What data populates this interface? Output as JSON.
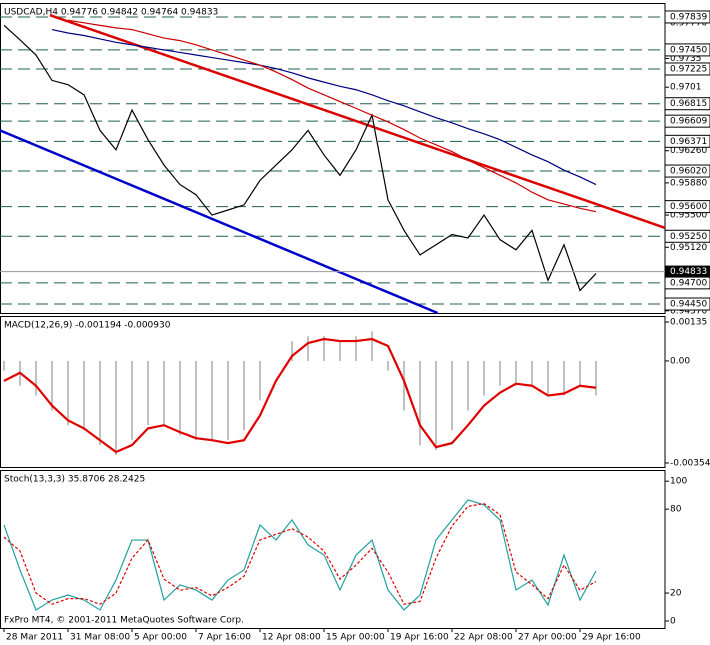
{
  "chart_data": [
    {
      "type": "line",
      "title": "USDCAD,H4  0.94776 0.94842 0.94764 0.94833",
      "series": [
        {
          "color": "#000000",
          "values": [
            0.9774,
            0.9757,
            0.9739,
            0.9709,
            0.9704,
            0.9692,
            0.965,
            0.9627,
            0.9674,
            0.9639,
            0.9609,
            0.9586,
            0.9574,
            0.955,
            0.9556,
            0.9562,
            0.9591,
            0.9609,
            0.9627,
            0.965,
            0.9621,
            0.9597,
            0.9627,
            0.9668,
            0.9568,
            0.9532,
            0.9503,
            0.9515,
            0.9527,
            0.9523,
            0.955,
            0.9521,
            0.9509,
            0.9532,
            0.9473,
            0.9515,
            0.9461,
            0.9481
          ]
        },
        {
          "color": "#000080",
          "values": [
            null,
            null,
            null,
            0.9769,
            0.9765,
            0.9762,
            0.9758,
            0.9754,
            0.9751,
            0.9748,
            0.9745,
            0.9742,
            0.9739,
            0.9736,
            0.9733,
            0.973,
            0.9727,
            0.9723,
            0.9718,
            0.9712,
            0.9707,
            0.9702,
            0.9698,
            0.9692,
            0.9685,
            0.9679,
            0.9672,
            0.9665,
            0.9659,
            0.9652,
            0.9646,
            0.9639,
            0.963,
            0.9621,
            0.9613,
            0.9603,
            0.9595,
            0.9586
          ]
        },
        {
          "color": "#cc0000",
          "values": [
            null,
            null,
            null,
            null,
            0.978,
            0.9777,
            0.9774,
            0.9771,
            0.9769,
            0.9764,
            0.9759,
            0.9756,
            0.9751,
            0.9745,
            0.9739,
            0.9733,
            0.9727,
            0.9719,
            0.971,
            0.97,
            0.9692,
            0.9684,
            0.9676,
            0.9668,
            0.966,
            0.9651,
            0.9641,
            0.9633,
            0.9625,
            0.9615,
            0.9606,
            0.9597,
            0.9588,
            0.9577,
            0.9568,
            0.9563,
            0.9558,
            0.9554
          ]
        }
      ],
      "ylim": [
        0.94344,
        0.98004
      ],
      "yticks": [
        {
          "value": 0.9777,
          "label": "0.97770"
        },
        0.9735,
        0.9701,
        {
          "value": 0.9626,
          "label": "0.96260"
        },
        {
          "value": 0.9588,
          "label": "0.95880"
        },
        {
          "value": 0.955,
          "label": "0.95500"
        },
        {
          "value": 0.9512,
          "label": "0.95120"
        },
        {
          "value": 0.9437,
          "label": "0.94370"
        }
      ],
      "levels": [
        0.97839,
        {
          "value": 0.9745,
          "label": "0.97450"
        },
        0.97225,
        0.96815,
        0.96609,
        0.96371,
        {
          "value": 0.9602,
          "label": "0.96020"
        },
        {
          "value": 0.956,
          "label": "0.95600"
        },
        {
          "value": 0.9525,
          "label": "0.95250"
        },
        {
          "value": 0.947,
          "label": "0.94700"
        },
        {
          "value": 0.9445,
          "label": "0.94450"
        }
      ],
      "current_price": 0.94833,
      "trendlines": [
        {
          "color": "#dd0000",
          "x": [
            2.875,
            41.3
          ],
          "y": [
            0.9786,
            0.9535
          ]
        },
        {
          "color": "#0000cc",
          "x": [
            -0.25,
            27.1
          ],
          "y": [
            0.965,
            0.94344
          ]
        }
      ]
    },
    {
      "type": "macd",
      "title": "MACD(12,26,9) -0.001194 -0.000930",
      "series": [
        {
          "color": "#c0c0c0",
          "values": [
            -0.00034,
            -0.00086,
            -0.0012,
            -0.00172,
            -0.00223,
            -0.00241,
            -0.00292,
            -0.00327,
            -0.00275,
            -0.00223,
            -0.00223,
            -0.00258,
            -0.00275,
            -0.00275,
            -0.00275,
            -0.00241,
            -0.00137,
            0,
            0.00069,
            0.00086,
            0.00086,
            0.00069,
            0.00086,
            0.00103,
            -0.00034,
            -0.00172,
            -0.00292,
            -0.00309,
            -0.00241,
            -0.00172,
            -0.0012,
            -0.00086,
            -0.00086,
            -0.00086,
            -0.0012,
            -0.0012,
            -0.00086,
            -0.001194
          ]
        },
        {
          "color": "#e00000",
          "values": [
            -0.00069,
            -0.00041,
            -0.00086,
            -0.00155,
            -0.00206,
            -0.00234,
            -0.00275,
            -0.00316,
            -0.00292,
            -0.00234,
            -0.00223,
            -0.00247,
            -0.00268,
            -0.00275,
            -0.00285,
            -0.00275,
            -0.00189,
            -0.00069,
            0.00017,
            0.00062,
            0.00076,
            0.00069,
            0.00069,
            0.00076,
            0.00052,
            -0.00069,
            -0.00223,
            -0.00299,
            -0.00285,
            -0.00223,
            -0.00155,
            -0.0011,
            -0.00079,
            -0.00086,
            -0.0012,
            -0.00113,
            -0.00086,
            -0.00093
          ]
        }
      ],
      "ylim": [
        -0.00368,
        0.00156
      ],
      "yticks": [
        0.00135,
        {
          "value": 0,
          "label": "0.00"
        },
        -0.00354
      ]
    },
    {
      "type": "stoch",
      "title": "Stoch(13,3,3) 35.8706 28.2425",
      "footer": "FxPro MT4, © 2001-2011 MetaQuotes Software Corp.",
      "categories": [
        "28 Mar 2011",
        null,
        null,
        null,
        "31 Mar 08:00",
        null,
        null,
        null,
        "5 Apr 00:00",
        null,
        null,
        null,
        "7 Apr 16:00",
        null,
        null,
        null,
        "12 Apr 08:00",
        null,
        null,
        null,
        "15 Apr 00:00",
        null,
        null,
        null,
        "19 Apr 16:00",
        null,
        null,
        null,
        "22 Apr 08:00",
        null,
        null,
        null,
        "27 Apr 00:00",
        null,
        null,
        null,
        "29 Apr 16:00",
        null
      ],
      "series": [
        {
          "color": "#20a0a0",
          "values": [
            68.7,
            36.5,
            7.9,
            15,
            18.6,
            15,
            7.9,
            29.3,
            57.9,
            57.9,
            15,
            25.8,
            22.2,
            15,
            29.3,
            36.5,
            68.7,
            57.9,
            72.3,
            54.4,
            47.2,
            22.2,
            47.2,
            57.9,
            22.2,
            7.9,
            18.6,
            57.9,
            72.3,
            86.6,
            83,
            72.3,
            22.2,
            29.3,
            11.5,
            47.2,
            15,
            35.8706
          ]
        },
        {
          "color": "#e00000",
          "dashed": true,
          "values": [
            60,
            50,
            20,
            12,
            16,
            16,
            12,
            20,
            45,
            58,
            30,
            22,
            24,
            18,
            24,
            32,
            58,
            62,
            66,
            60,
            50,
            30,
            40,
            52,
            35,
            12,
            14,
            45,
            68,
            82,
            84,
            76,
            35,
            26,
            16,
            40,
            22,
            28.2425
          ]
        }
      ],
      "ylim": [
        -5,
        108
      ],
      "yticks": [
        100,
        80,
        20,
        0
      ]
    }
  ]
}
